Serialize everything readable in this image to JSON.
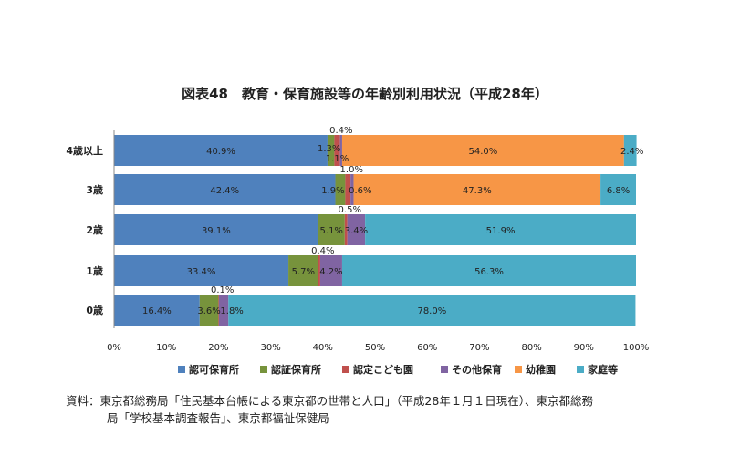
{
  "chart_data": {
    "type": "bar",
    "orientation": "horizontal",
    "stacked": true,
    "title": "図表48　教育・保育施設等の年齢別利用状況（平成28年）",
    "categories": [
      "4歳以上",
      "3歳",
      "2歳",
      "1歳",
      "0歳"
    ],
    "series": [
      {
        "name": "認可保育所",
        "color": "#4f81bd",
        "values": [
          40.9,
          42.4,
          39.1,
          33.4,
          16.4
        ],
        "labels": [
          "40.9%",
          "42.4%",
          "39.1%",
          "33.4%",
          "16.4%"
        ]
      },
      {
        "name": "認証保育所",
        "color": "#77933c",
        "values": [
          1.3,
          1.9,
          5.1,
          5.7,
          3.6
        ],
        "labels": [
          "1.3%",
          "1.9%",
          "5.1%",
          "5.7%",
          "3.6%"
        ]
      },
      {
        "name": "認定こども園",
        "color": "#c0504d",
        "values": [
          1.1,
          1.0,
          0.5,
          0.4,
          0.1
        ],
        "labels": [
          "1.1%",
          "1.0%",
          "0.5%",
          "0.4%",
          "0.1%"
        ]
      },
      {
        "name": "その他保育",
        "color": "#8064a2",
        "values": [
          0.4,
          0.6,
          3.4,
          4.2,
          1.8
        ],
        "labels": [
          "0.4%",
          "0.6%",
          "3.4%",
          "4.2%",
          "1.8%"
        ]
      },
      {
        "name": "幼稚園",
        "color": "#f79646",
        "values": [
          54.0,
          47.3,
          0,
          0,
          0
        ],
        "labels": [
          "54.0%",
          "47.3%",
          "",
          "",
          ""
        ]
      },
      {
        "name": "家庭等",
        "color": "#4bacc6",
        "values": [
          2.4,
          6.8,
          51.9,
          56.3,
          78.0
        ],
        "labels": [
          "2.4%",
          "6.8%",
          "51.9%",
          "56.3%",
          "78.0%"
        ]
      }
    ],
    "xlim": [
      0,
      100
    ],
    "xticks": [
      "0%",
      "10%",
      "20%",
      "30%",
      "40%",
      "50%",
      "60%",
      "70%",
      "80%",
      "90%",
      "100%"
    ],
    "legend_position": "bottom",
    "grid": false
  },
  "source": {
    "line1": "資料：東京都総務局「住民基本台帳による東京都の世帯と人口」（平成28年１月１日現在）、東京都総務",
    "line2": "局「学校基本調査報告」、東京都福祉保健局"
  }
}
